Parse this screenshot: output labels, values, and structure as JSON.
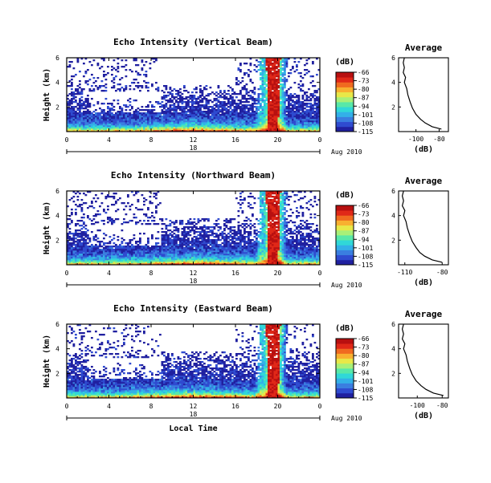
{
  "figure": {
    "bottom_xlabel": "Local Time",
    "date_label": "Aug 2010",
    "colorbar_unit": "(dB)",
    "colorbar_ticks": [
      -66,
      -73,
      -80,
      -87,
      -94,
      -101,
      -108,
      -115
    ],
    "colormap": [
      "#2020a0",
      "#2f4bd0",
      "#3a7ee0",
      "#33b0e8",
      "#30d8d8",
      "#58e8a8",
      "#a8f078",
      "#e8e848",
      "#f8b030",
      "#f06a20",
      "#e02818",
      "#b81010"
    ],
    "height_ticks": [
      "6",
      "4",
      "2"
    ],
    "time_ticks": [
      "0",
      "4",
      "8",
      "12",
      "16",
      "20",
      "0"
    ],
    "day_label": "18"
  },
  "chart_data": [
    {
      "type": "heatmap",
      "title": "Echo Intensity (Vertical Beam)",
      "xlabel": "",
      "ylabel": "Height (km)",
      "x_unit": "local hour",
      "xlim": [
        0,
        24
      ],
      "ylim": [
        0,
        6
      ],
      "zlim": [
        -115,
        -66
      ],
      "profile": {
        "title": "Average",
        "xlabel": "(dB)",
        "xticks": [
          "-100",
          "-80"
        ],
        "xlim": [
          -115,
          -72
        ],
        "ylim": [
          0,
          6
        ],
        "yticks": [
          "6",
          "4",
          "2"
        ],
        "points": [
          [
            -78,
            0.2
          ],
          [
            -86,
            0.4
          ],
          [
            -92,
            0.7
          ],
          [
            -96,
            1.0
          ],
          [
            -100,
            1.4
          ],
          [
            -103,
            1.9
          ],
          [
            -105,
            2.4
          ],
          [
            -107,
            3.0
          ],
          [
            -108,
            3.5
          ],
          [
            -110,
            4.0
          ],
          [
            -109,
            4.4
          ],
          [
            -111,
            4.8
          ],
          [
            -110,
            5.2
          ],
          [
            -111,
            5.6
          ],
          [
            -110,
            6.0
          ]
        ]
      }
    },
    {
      "type": "heatmap",
      "title": "Echo Intensity (Northward Beam)",
      "xlabel": "",
      "ylabel": "Height (km)",
      "x_unit": "local hour",
      "xlim": [
        0,
        24
      ],
      "ylim": [
        0,
        6
      ],
      "zlim": [
        -115,
        -66
      ],
      "profile": {
        "title": "Average",
        "xlabel": "(dB)",
        "xticks": [
          "-110",
          "-80"
        ],
        "xlim": [
          -115,
          -75
        ],
        "ylim": [
          0,
          6
        ],
        "yticks": [
          "6",
          "4",
          "2"
        ],
        "points": [
          [
            -80,
            0.2
          ],
          [
            -88,
            0.4
          ],
          [
            -94,
            0.7
          ],
          [
            -98,
            1.0
          ],
          [
            -101,
            1.4
          ],
          [
            -104,
            1.9
          ],
          [
            -106,
            2.4
          ],
          [
            -108,
            3.0
          ],
          [
            -109,
            3.5
          ],
          [
            -111,
            4.0
          ],
          [
            -110,
            4.4
          ],
          [
            -112,
            4.8
          ],
          [
            -111,
            5.2
          ],
          [
            -112,
            5.6
          ],
          [
            -111,
            6.0
          ]
        ]
      }
    },
    {
      "type": "heatmap",
      "title": "Echo Intensity (Eastward Beam)",
      "xlabel": "Local Time",
      "ylabel": "Height (km)",
      "x_unit": "local hour",
      "xlim": [
        0,
        24
      ],
      "ylim": [
        0,
        6
      ],
      "zlim": [
        -115,
        -66
      ],
      "profile": {
        "title": "Average",
        "xlabel": "(dB)",
        "xticks": [
          "-100",
          "-80"
        ],
        "xlim": [
          -115,
          -75
        ],
        "ylim": [
          0,
          6
        ],
        "yticks": [
          "6",
          "4",
          "2"
        ],
        "points": [
          [
            -79,
            0.2
          ],
          [
            -87,
            0.4
          ],
          [
            -93,
            0.7
          ],
          [
            -97,
            1.0
          ],
          [
            -101,
            1.4
          ],
          [
            -104,
            1.9
          ],
          [
            -106,
            2.4
          ],
          [
            -108,
            3.0
          ],
          [
            -109,
            3.5
          ],
          [
            -111,
            4.0
          ],
          [
            -110,
            4.4
          ],
          [
            -112,
            4.8
          ],
          [
            -111,
            5.2
          ],
          [
            -112,
            5.6
          ],
          [
            -111,
            6.0
          ]
        ]
      }
    }
  ]
}
